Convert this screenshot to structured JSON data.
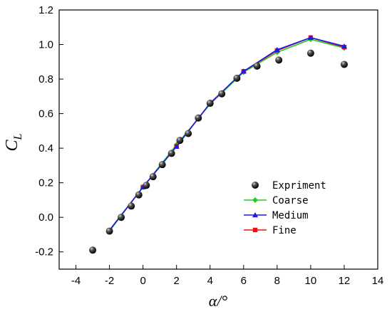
{
  "chart_data": {
    "type": "line",
    "xlabel": "α/°",
    "ylabel": "C",
    "ylabel_subscript": "L",
    "xlim": [
      -5,
      14
    ],
    "ylim": [
      -0.3,
      1.2
    ],
    "xticks": [
      -4,
      -2,
      0,
      2,
      4,
      6,
      8,
      10,
      12,
      14
    ],
    "yticks": [
      -0.2,
      0.0,
      0.2,
      0.4,
      0.6,
      0.8,
      1.0,
      1.2
    ],
    "ytick_labels": [
      "-0.2",
      "0.0",
      "0.2",
      "0.4",
      "0.6",
      "0.8",
      "1.0",
      "1.2"
    ],
    "grid": false,
    "legend_position": "bottom-right",
    "series": [
      {
        "name": "Expriment",
        "style": "scatter",
        "marker": "sphere",
        "color": "#000000",
        "x": [
          -3.0,
          -2.0,
          -1.3,
          -0.7,
          -0.25,
          0.2,
          0.6,
          1.15,
          1.7,
          2.2,
          2.7,
          3.3,
          4.0,
          4.7,
          5.6,
          6.8,
          8.1,
          10.0,
          12.0
        ],
        "y": [
          -0.19,
          -0.08,
          0.0,
          0.065,
          0.13,
          0.185,
          0.235,
          0.305,
          0.37,
          0.445,
          0.485,
          0.575,
          0.66,
          0.715,
          0.805,
          0.875,
          0.91,
          0.95,
          0.885
        ]
      },
      {
        "name": "Coarse",
        "style": "line",
        "marker": "diamond",
        "color": "#22cc22",
        "x": [
          -2,
          0,
          2,
          4,
          6,
          8,
          10,
          12
        ],
        "y": [
          -0.08,
          0.175,
          0.42,
          0.655,
          0.84,
          0.955,
          1.03,
          0.98
        ]
      },
      {
        "name": "Medium",
        "style": "line",
        "marker": "triangle",
        "color": "#1a1aee",
        "x": [
          -2,
          0,
          2,
          4,
          6,
          8,
          10,
          12
        ],
        "y": [
          -0.075,
          0.175,
          0.41,
          0.66,
          0.845,
          0.97,
          1.04,
          0.99
        ]
      },
      {
        "name": "Fine",
        "style": "line",
        "marker": "square",
        "color": "#ee1111",
        "x": [
          -2,
          0,
          2,
          4,
          6,
          8,
          10,
          12
        ],
        "y": [
          -0.075,
          0.175,
          0.41,
          0.66,
          0.845,
          0.965,
          1.04,
          0.985
        ]
      }
    ]
  }
}
